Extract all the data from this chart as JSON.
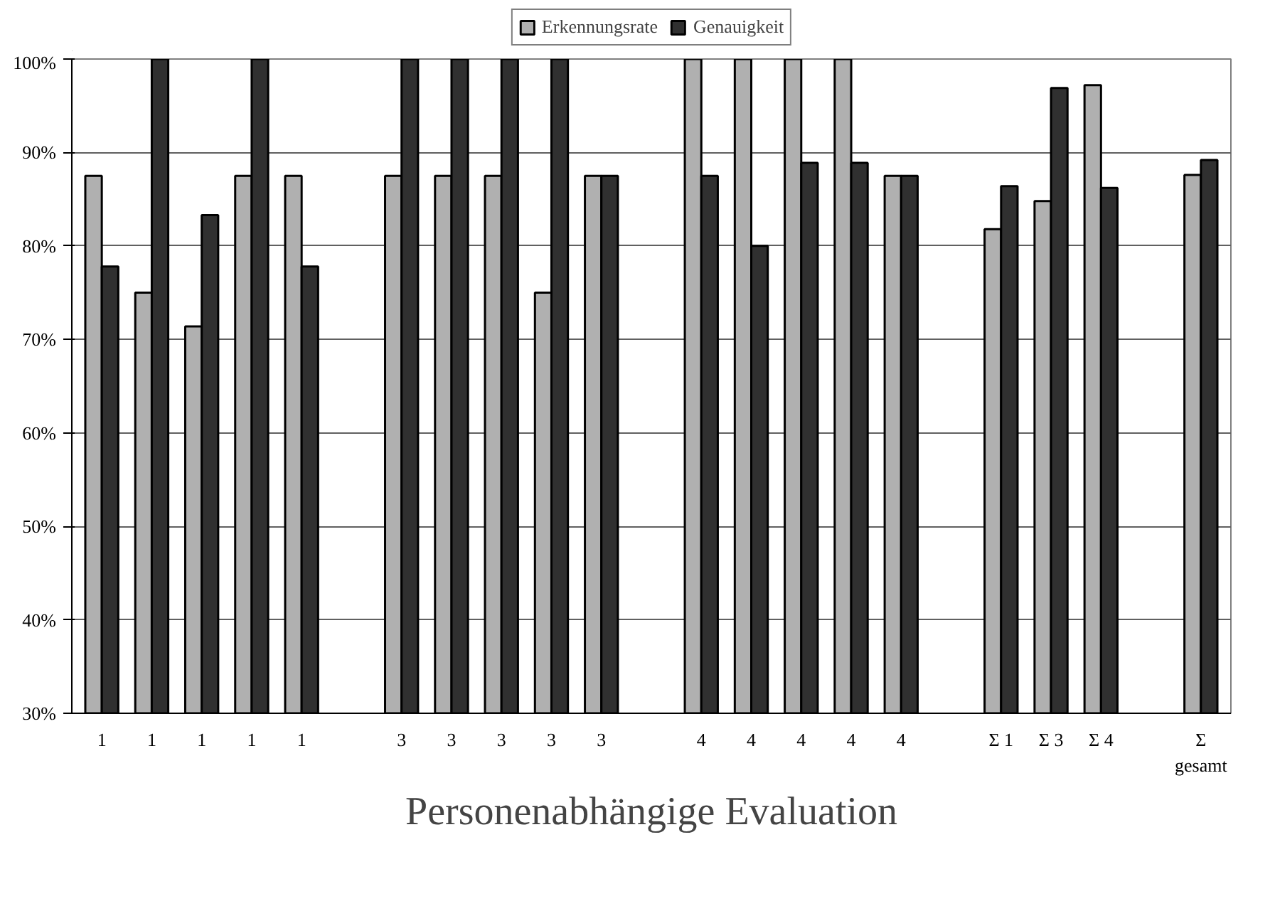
{
  "chart_data": {
    "type": "bar",
    "title": "Personenabhängige Evaluation",
    "categories": [
      "1",
      "1",
      "1",
      "1",
      "1",
      null,
      "3",
      "3",
      "3",
      "3",
      "3",
      null,
      "4",
      "4",
      "4",
      "4",
      "4",
      null,
      "Σ 1",
      "Σ 3",
      "Σ 4",
      null,
      "Σ\ngesamt"
    ],
    "series": [
      {
        "name": "Erkennungsrate",
        "color": "#b0b0b0",
        "values": [
          87.5,
          75,
          71.4,
          87.5,
          87.5,
          null,
          87.5,
          87.5,
          87.5,
          75,
          87.5,
          null,
          100,
          100,
          100,
          100,
          87.5,
          null,
          81.8,
          84.8,
          97.2,
          null,
          87.6
        ]
      },
      {
        "name": "Genauigkeit",
        "color": "#303030",
        "values": [
          77.8,
          100,
          83.3,
          100,
          77.8,
          null,
          100,
          100,
          100,
          100,
          87.5,
          null,
          87.5,
          80,
          88.9,
          88.9,
          87.5,
          null,
          86.4,
          96.9,
          86.2,
          null,
          89.2
        ]
      }
    ],
    "ylim": [
      30,
      100
    ],
    "yticks": [
      {
        "value": 30,
        "label": "30%"
      },
      {
        "value": 40,
        "label": "40%"
      },
      {
        "value": 50,
        "label": "50%"
      },
      {
        "value": 60,
        "label": "60%"
      },
      {
        "value": 70,
        "label": "70%"
      },
      {
        "value": 80,
        "label": "80%"
      },
      {
        "value": 90,
        "label": "90%"
      },
      {
        "value": 100,
        "label": "100%"
      }
    ],
    "grid": "y",
    "legend": "top"
  }
}
